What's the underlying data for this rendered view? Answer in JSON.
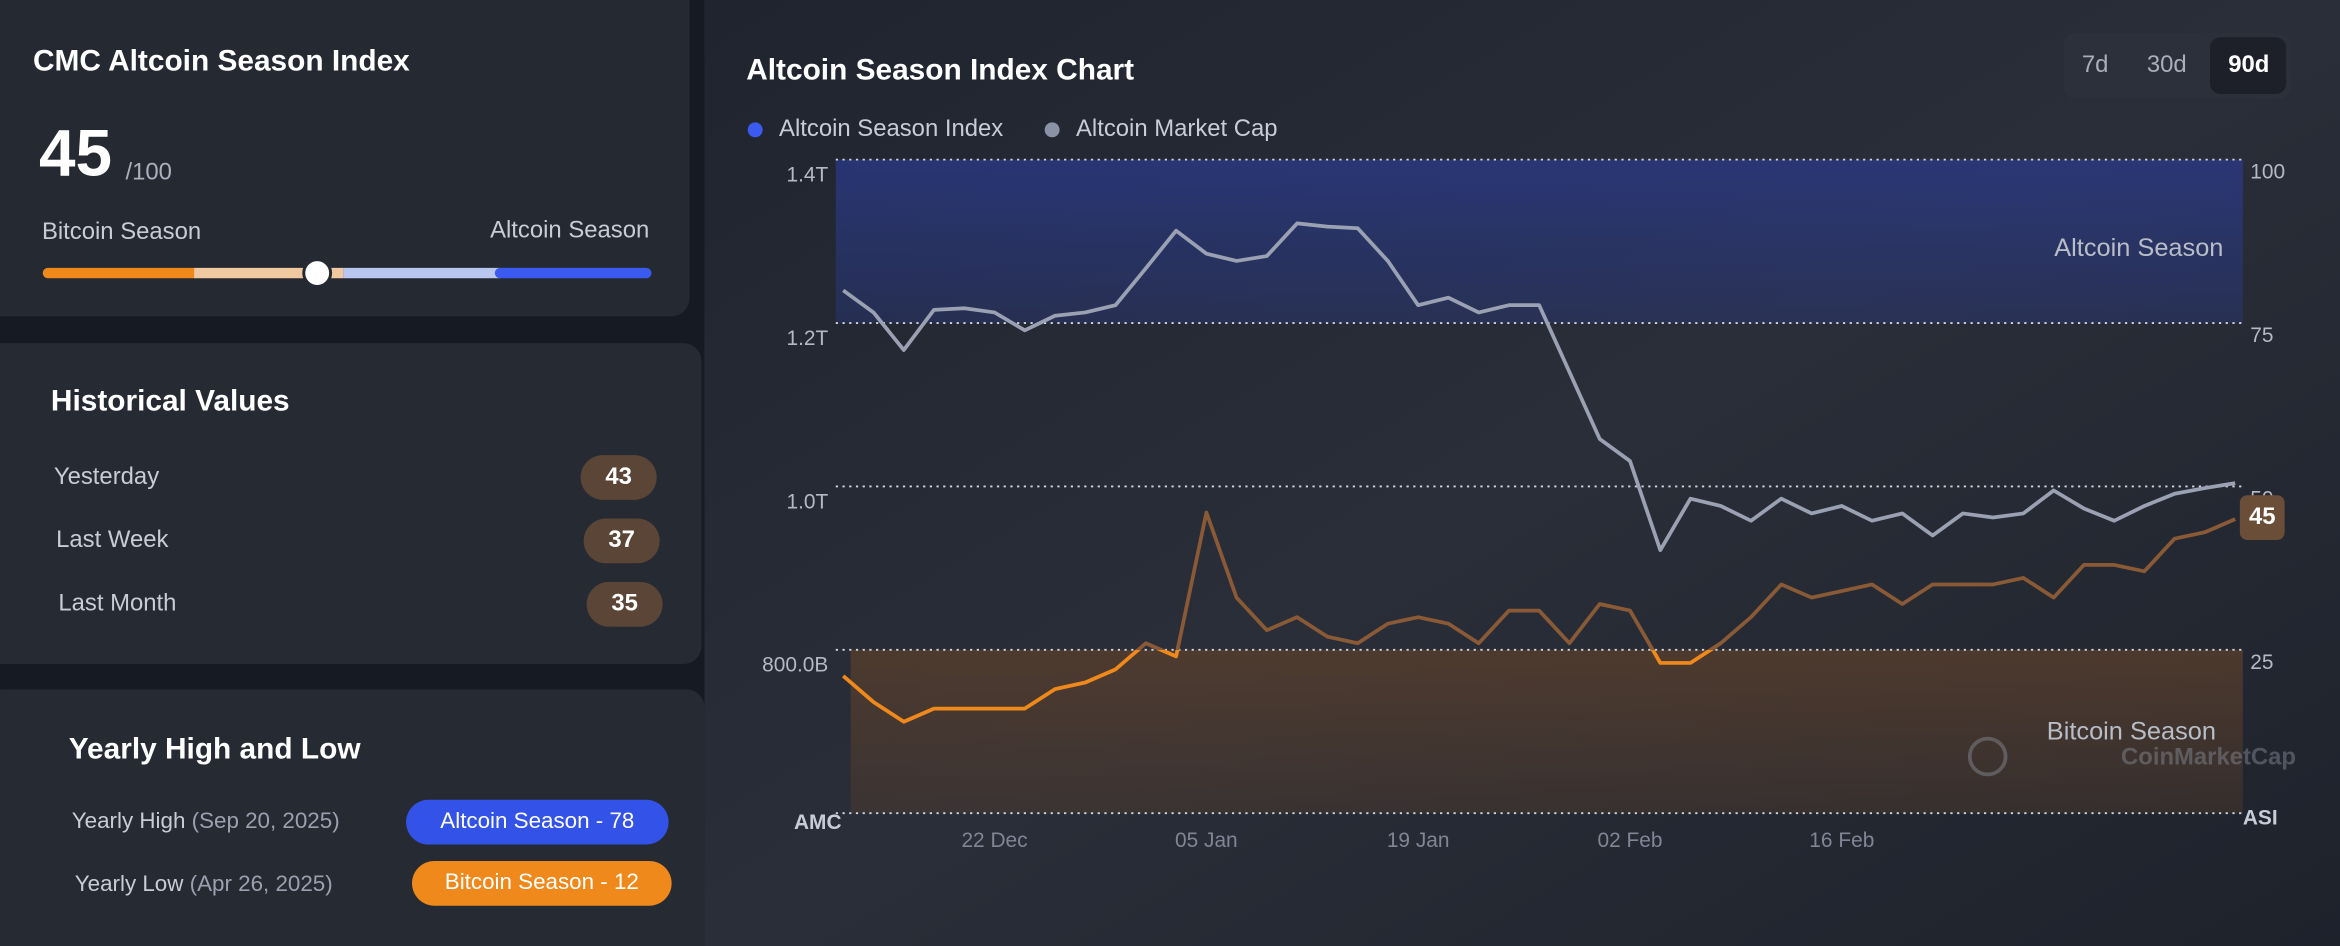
{
  "index_panel": {
    "title": "CMC Altcoin Season Index",
    "value": 45,
    "max": {
      "value": 100,
      "label": "/100"
    },
    "left_label": "Bitcoin Season",
    "right_label": "Altcoin Season"
  },
  "historical": {
    "title": "Historical Values",
    "rows": [
      {
        "label": "Yesterday",
        "value": 43
      },
      {
        "label": "Last Week",
        "value": 37
      },
      {
        "label": "Last Month",
        "value": 35
      }
    ]
  },
  "yearly": {
    "title": "Yearly High and Low",
    "high": {
      "label": "Yearly High",
      "date": "(Sep 20, 2025)",
      "badge": "Altcoin Season - 78"
    },
    "low": {
      "label": "Yearly Low",
      "date": "(Apr 26, 2025)",
      "badge": "Bitcoin Season - 12"
    }
  },
  "chart_data": {
    "type": "line",
    "title": "Altcoin Season Index Chart",
    "timeframes": [
      "7d",
      "30d",
      "90d"
    ],
    "selected": 2,
    "categories": [
      null,
      null,
      null,
      null,
      null,
      "22 Dec",
      null,
      null,
      null,
      null,
      null,
      null,
      "05 Jan",
      null,
      null,
      null,
      null,
      null,
      null,
      "19 Jan",
      null,
      null,
      null,
      null,
      null,
      null,
      "02 Feb",
      null,
      null,
      null,
      null,
      null,
      null,
      "16 Feb",
      null,
      null,
      null,
      null,
      null,
      null,
      null,
      null,
      null,
      null,
      null,
      null,
      null
    ],
    "series": [
      {
        "name": "Altcoin Season Index",
        "color": "#3b5bf0",
        "line_color": "#f0891c",
        "axis": "y2",
        "values": [
          21,
          17,
          14,
          16,
          16,
          16,
          16,
          19,
          20,
          22,
          26,
          24,
          46,
          33,
          28,
          30,
          27,
          26,
          29,
          30,
          29,
          26,
          31,
          31,
          26,
          32,
          31,
          23,
          23,
          26,
          30,
          35,
          33,
          34,
          35,
          32,
          35,
          35,
          35,
          36,
          33,
          38,
          38,
          37,
          42,
          43,
          45
        ]
      },
      {
        "name": "Altcoin Market Cap",
        "color": "#8a92a6",
        "line_color": "#9aa1b3",
        "values": [
          1240000000000,
          1213000000000,
          1167000000000,
          1216000000000,
          1218000000000,
          1213000000000,
          1191000000000,
          1209000000000,
          1213000000000,
          1222000000000,
          1267000000000,
          1313000000000,
          1285000000000,
          1276000000000,
          1282000000000,
          1322000000000,
          1318000000000,
          1316000000000,
          1276000000000,
          1222000000000,
          1231000000000,
          1213000000000,
          1222000000000,
          1222000000000,
          1140000000000,
          1058000000000,
          1031000000000,
          922000000000,
          985000000000,
          976000000000,
          958000000000,
          985000000000,
          967000000000,
          976000000000,
          958000000000,
          967000000000,
          940000000000,
          967000000000,
          962000000000,
          967000000000,
          995000000000,
          973000000000,
          958000000000,
          976000000000,
          991000000000,
          998000000000,
          1004000000000
        ]
      }
    ],
    "ylabel": "AMC",
    "y2label": "ASI",
    "ylim": [
      600000000000,
      1400000000000
    ],
    "yticks": [
      {
        "value": 800000000000,
        "label": "800.0B"
      },
      {
        "value": 1000000000000,
        "label": "1.0T"
      },
      {
        "value": 1200000000000,
        "label": "1.2T"
      },
      {
        "value": 1400000000000,
        "label": "1.4T"
      }
    ],
    "y2lim": [
      0,
      100
    ],
    "y2ticks": [
      25,
      50,
      75,
      100
    ],
    "bands": [
      {
        "label": "Altcoin Season",
        "from": 75,
        "to": 100,
        "color": "#2a3a8a"
      },
      {
        "label": "Bitcoin Season",
        "from": 0,
        "to": 25,
        "color": "#5a3f2c"
      }
    ],
    "watermark": "CoinMarketCap",
    "grid": true
  }
}
